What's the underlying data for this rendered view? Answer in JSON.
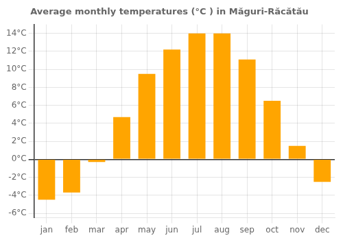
{
  "chart_data": {
    "type": "bar",
    "title": "Average monthly temperatures (°C ) in Măguri-Răcătău",
    "categories": [
      "jan",
      "feb",
      "mar",
      "apr",
      "may",
      "jun",
      "jul",
      "aug",
      "sep",
      "oct",
      "nov",
      "dec"
    ],
    "values": [
      -4.5,
      -3.7,
      -0.3,
      4.7,
      9.5,
      12.2,
      14.0,
      14.0,
      11.1,
      6.5,
      1.5,
      -2.5
    ],
    "color": "#FFA500",
    "ylim": [
      -6.5,
      15.0
    ],
    "yticks": [
      {
        "value": -6,
        "label": "-6°C"
      },
      {
        "value": -4,
        "label": "-4°C"
      },
      {
        "value": -2,
        "label": "-2°C"
      },
      {
        "value": 0,
        "label": "0°C"
      },
      {
        "value": 2,
        "label": "2°C"
      },
      {
        "value": 4,
        "label": "4°C"
      },
      {
        "value": 6,
        "label": "6°C"
      },
      {
        "value": 8,
        "label": "8°C"
      },
      {
        "value": 10,
        "label": "10°C"
      },
      {
        "value": 12,
        "label": "12°C"
      },
      {
        "value": 14,
        "label": "14°C"
      }
    ],
    "grid": true
  }
}
